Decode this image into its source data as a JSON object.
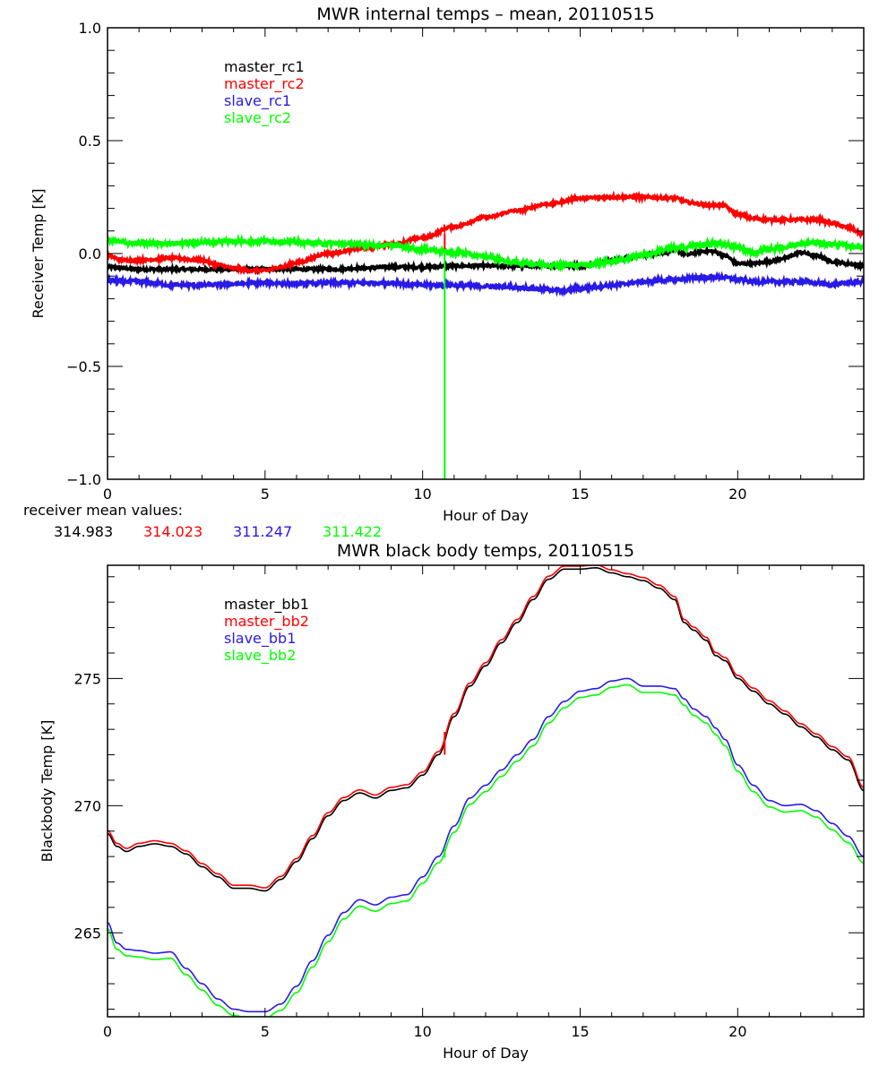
{
  "chart_data": [
    {
      "type": "line",
      "title": "MWR internal temps – mean, 20110515",
      "xlabel": "Hour of Day",
      "ylabel": "Receiver Temp [K]",
      "xlim": [
        0,
        24
      ],
      "ylim": [
        -1.0,
        1.0
      ],
      "xticks": [
        0,
        5,
        10,
        15,
        20
      ],
      "xtick_labels": [
        "0",
        "5",
        "10",
        "15",
        "20"
      ],
      "yticks": [
        -1.0,
        -0.5,
        0.0,
        0.5,
        1.0
      ],
      "ytick_labels": [
        "-1.0",
        "-0.5",
        "0.0",
        "0.5",
        "1.0"
      ],
      "x_minor_step": 1,
      "y_minor_step": 0.1,
      "grid": false,
      "legend_position": "top-left",
      "series": [
        {
          "name": "master_rc1",
          "color": "#000000",
          "noise": 0.006,
          "x": [
            0,
            1,
            2,
            3,
            4,
            5,
            6,
            7,
            8,
            9,
            10,
            11,
            12,
            13,
            14,
            15,
            16,
            17,
            17.5,
            18,
            18.4,
            18.8,
            19.2,
            19.6,
            20,
            20.5,
            21,
            21.5,
            22,
            22.5,
            23,
            23.5,
            24
          ],
          "y": [
            -0.06,
            -0.07,
            -0.07,
            -0.07,
            -0.07,
            -0.07,
            -0.07,
            -0.07,
            -0.065,
            -0.06,
            -0.06,
            -0.055,
            -0.055,
            -0.055,
            -0.055,
            -0.055,
            -0.03,
            -0.01,
            0.0,
            0.015,
            -0.005,
            0.01,
            0.01,
            -0.01,
            -0.045,
            -0.045,
            -0.035,
            -0.02,
            0.005,
            -0.01,
            -0.035,
            -0.045,
            -0.055
          ]
        },
        {
          "name": "master_rc2",
          "color": "#ff0000",
          "noise": 0.006,
          "x": [
            0,
            0.5,
            1,
            2,
            3,
            3.5,
            4,
            4.5,
            5,
            5.5,
            6,
            7,
            8,
            9,
            10,
            11,
            12,
            13,
            14,
            15,
            16,
            17,
            18,
            18.5,
            19,
            19.5,
            20,
            20.5,
            21,
            22,
            22.5,
            23,
            23.5,
            24
          ],
          "y": [
            -0.01,
            -0.03,
            -0.03,
            -0.02,
            -0.03,
            -0.05,
            -0.065,
            -0.075,
            -0.075,
            -0.06,
            -0.04,
            0.0,
            0.02,
            0.04,
            0.07,
            0.12,
            0.16,
            0.19,
            0.22,
            0.245,
            0.25,
            0.25,
            0.245,
            0.225,
            0.215,
            0.215,
            0.175,
            0.155,
            0.15,
            0.15,
            0.15,
            0.135,
            0.115,
            0.085
          ]
        },
        {
          "name": "slave_rc1",
          "color": "#2a1ae6",
          "noise": 0.008,
          "x": [
            0,
            1,
            1.5,
            2,
            3,
            4,
            5,
            6,
            7,
            8,
            9,
            10,
            11,
            12,
            13,
            14,
            14.5,
            15,
            16,
            17,
            18,
            19,
            19.5,
            20,
            20.5,
            21,
            22,
            22.5,
            23,
            23.5,
            24
          ],
          "y": [
            -0.12,
            -0.125,
            -0.13,
            -0.14,
            -0.14,
            -0.135,
            -0.13,
            -0.135,
            -0.13,
            -0.13,
            -0.13,
            -0.14,
            -0.14,
            -0.145,
            -0.15,
            -0.16,
            -0.165,
            -0.155,
            -0.14,
            -0.125,
            -0.115,
            -0.105,
            -0.105,
            -0.115,
            -0.125,
            -0.125,
            -0.125,
            -0.13,
            -0.14,
            -0.13,
            -0.125
          ]
        },
        {
          "name": "slave_rc2",
          "color": "#00ff00",
          "noise": 0.01,
          "x": [
            0,
            0.5,
            1,
            2,
            3,
            4,
            5,
            6,
            7,
            8,
            9,
            10,
            11,
            12,
            13,
            14,
            15,
            16,
            17,
            18,
            19,
            19.5,
            20,
            20.5,
            21,
            22,
            22.5,
            23,
            24
          ],
          "y": [
            0.06,
            0.05,
            0.045,
            0.045,
            0.05,
            0.055,
            0.055,
            0.05,
            0.045,
            0.04,
            0.035,
            0.02,
            0.005,
            -0.015,
            -0.04,
            -0.05,
            -0.05,
            -0.035,
            -0.005,
            0.025,
            0.04,
            0.045,
            0.025,
            0.005,
            0.02,
            0.04,
            0.05,
            0.04,
            0.03
          ]
        }
      ],
      "spikes": [
        {
          "series": "slave_rc2",
          "x": 10.7,
          "y_from": 0.02,
          "y_to": -1.0
        },
        {
          "series": "master_rc2",
          "x": 10.7,
          "y_from": 0.09,
          "y_to": 0.02
        }
      ],
      "annotation": {
        "label": "receiver mean values:",
        "values": [
          {
            "text": "314.983",
            "color": "#000000"
          },
          {
            "text": "314.023",
            "color": "#ff0000"
          },
          {
            "text": "311.247",
            "color": "#2a1ae6"
          },
          {
            "text": "311.422",
            "color": "#00ff00"
          }
        ]
      }
    },
    {
      "type": "line",
      "title": "MWR black body temps, 20110515",
      "xlabel": "Hour of Day",
      "ylabel": "Blackbody Temp [K]",
      "xlim": [
        0,
        24
      ],
      "ylim": [
        261.7,
        279.45
      ],
      "xticks": [
        0,
        5,
        10,
        15,
        20
      ],
      "xtick_labels": [
        "0",
        "5",
        "10",
        "15",
        "20"
      ],
      "yticks": [
        265,
        270,
        275
      ],
      "ytick_labels": [
        "265",
        "270",
        "275"
      ],
      "x_minor_step": 1,
      "y_minor_step": 1,
      "grid": false,
      "legend_position": "top-left",
      "series": [
        {
          "name": "master_bb1",
          "color": "#000000",
          "noise": 0,
          "x": [
            0,
            0.3,
            0.6,
            1,
            1.5,
            2,
            2.5,
            3,
            3.5,
            4,
            4.5,
            5,
            5.5,
            6,
            6.5,
            7,
            7.5,
            8,
            8.5,
            9,
            9.5,
            10,
            10.5,
            11,
            11.5,
            12,
            12.5,
            13,
            13.5,
            14,
            14.5,
            15,
            15.5,
            16,
            16.5,
            17,
            17.5,
            18,
            18.3,
            18.6,
            19,
            19.3,
            19.6,
            20,
            20.5,
            21,
            21.5,
            22,
            22.5,
            23,
            23.5,
            24
          ],
          "y": [
            268.9,
            268.4,
            268.2,
            268.4,
            268.5,
            268.4,
            268.1,
            267.6,
            267.2,
            266.75,
            266.75,
            266.65,
            267.1,
            267.8,
            268.7,
            269.6,
            270.2,
            270.5,
            270.3,
            270.6,
            270.7,
            271.2,
            272.0,
            273.5,
            274.7,
            275.5,
            276.4,
            277.2,
            278.1,
            278.9,
            279.3,
            279.3,
            279.35,
            279.15,
            279.0,
            278.85,
            278.55,
            278.1,
            277.2,
            276.9,
            276.5,
            275.9,
            275.7,
            275.0,
            274.5,
            274.0,
            273.6,
            273.1,
            272.7,
            272.2,
            271.8,
            270.6
          ]
        },
        {
          "name": "master_bb2",
          "color": "#ff0000",
          "noise": 0,
          "offset_of": "master_bb1",
          "offset": 0.12
        },
        {
          "name": "slave_bb1",
          "color": "#2a1ae6",
          "noise": 0,
          "x": [
            0,
            0.3,
            0.6,
            1,
            1.5,
            2,
            2.5,
            3,
            3.5,
            4,
            4.5,
            5,
            5.5,
            6,
            6.5,
            7,
            7.5,
            8,
            8.5,
            9,
            9.5,
            10,
            10.5,
            11,
            11.5,
            12,
            12.5,
            13,
            13.5,
            14,
            14.5,
            15,
            15.5,
            16,
            16.5,
            17,
            17.5,
            18,
            18.3,
            18.6,
            19,
            19.3,
            19.6,
            20,
            20.5,
            21,
            21.5,
            22,
            22.5,
            23,
            23.5,
            24
          ],
          "y": [
            265.4,
            264.6,
            264.35,
            264.3,
            264.2,
            264.25,
            263.6,
            263.0,
            262.4,
            262.0,
            261.9,
            261.9,
            262.2,
            262.9,
            263.9,
            264.9,
            265.8,
            266.3,
            266.1,
            266.4,
            266.5,
            267.2,
            268.0,
            269.2,
            270.3,
            270.8,
            271.4,
            272.0,
            272.6,
            273.5,
            274.1,
            274.5,
            274.6,
            274.9,
            275.0,
            274.7,
            274.7,
            274.6,
            274.2,
            273.8,
            273.5,
            273.05,
            272.6,
            271.6,
            270.8,
            270.2,
            270.0,
            270.05,
            269.8,
            269.3,
            268.8,
            268.0
          ]
        },
        {
          "name": "slave_bb2",
          "color": "#00ff00",
          "noise": 0,
          "offset_of": "slave_bb1",
          "offset": -0.25
        }
      ],
      "spikes": [
        {
          "series": "master_bb2",
          "x": 10.7,
          "y_from": 272.9,
          "y_to": 272.0
        },
        {
          "series": "slave_bb2",
          "x": 10.7,
          "y_from": 268.3,
          "y_to": 267.95
        }
      ]
    }
  ]
}
